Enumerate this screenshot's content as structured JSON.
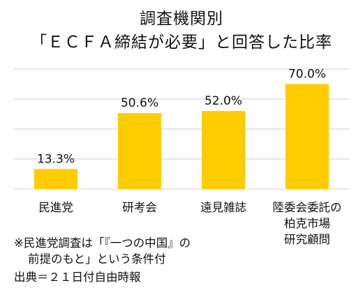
{
  "chart_data": {
    "type": "bar",
    "title": "調査機関別",
    "subtitle": "「ＥＣＦＡ締結が必要」と回答した比率",
    "categories": [
      [
        "民進党"
      ],
      [
        "研考会"
      ],
      [
        "遠見雑誌"
      ],
      [
        "陸委会委託の",
        "柏克市場",
        "研究顧問"
      ]
    ],
    "values": [
      13.3,
      50.6,
      52.0,
      70.0
    ],
    "value_labels": [
      "13.3%",
      "50.6%",
      "52.0%",
      "70.0%"
    ],
    "ylim": [
      0,
      80
    ],
    "grid": true,
    "color": "#FFCC00",
    "xlabel": "",
    "ylabel": ""
  },
  "notes": {
    "note1_line1": "※民進党調査は「『一つの中国』の",
    "note1_line2": "前提のもと」という条件付",
    "source": "出典＝２１日付自由時報"
  }
}
